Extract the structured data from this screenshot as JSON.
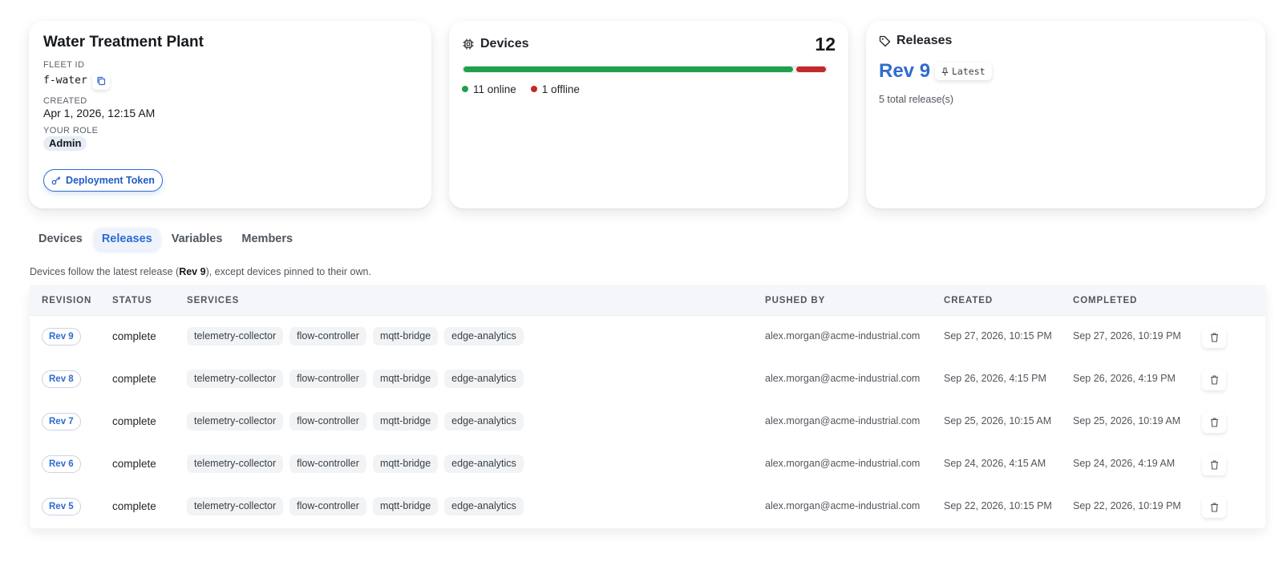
{
  "fleet": {
    "title": "Water Treatment Plant",
    "fleet_id_label": "FLEET ID",
    "fleet_id": "f-water",
    "created_label": "CREATED",
    "created": "Apr 1, 2026, 12:15 AM",
    "role_label": "YOUR ROLE",
    "role": "Admin",
    "token_button": "Deployment Token"
  },
  "devices": {
    "title": "Devices",
    "count": "12",
    "online": 11,
    "offline": 1,
    "online_label": "11 online",
    "offline_label": "1 offline",
    "online_color": "#1fa04a",
    "offline_color": "#c42828"
  },
  "releases": {
    "title": "Releases",
    "current": "Rev 9",
    "latest_label": "Latest",
    "total": "5 total release(s)"
  },
  "tabs": [
    "Devices",
    "Releases",
    "Variables",
    "Members"
  ],
  "active_tab": "Releases",
  "note": {
    "before": "Devices follow the latest release (",
    "rev": "Rev 9",
    "after": "), except devices pinned to their own."
  },
  "table": {
    "headers": [
      "REVISION",
      "STATUS",
      "SERVICES",
      "PUSHED BY",
      "CREATED",
      "COMPLETED"
    ],
    "rows": [
      {
        "rev": "Rev 9",
        "status": "complete",
        "services": [
          "telemetry-collector",
          "flow-controller",
          "mqtt-bridge",
          "edge-analytics"
        ],
        "pushed_by": "alex.morgan@acme-industrial.com",
        "created": "Sep 27, 2026, 10:15 PM",
        "completed": "Sep 27, 2026, 10:19 PM"
      },
      {
        "rev": "Rev 8",
        "status": "complete",
        "services": [
          "telemetry-collector",
          "flow-controller",
          "mqtt-bridge",
          "edge-analytics"
        ],
        "pushed_by": "alex.morgan@acme-industrial.com",
        "created": "Sep 26, 2026, 4:15 PM",
        "completed": "Sep 26, 2026, 4:19 PM"
      },
      {
        "rev": "Rev 7",
        "status": "complete",
        "services": [
          "telemetry-collector",
          "flow-controller",
          "mqtt-bridge",
          "edge-analytics"
        ],
        "pushed_by": "alex.morgan@acme-industrial.com",
        "created": "Sep 25, 2026, 10:15 AM",
        "completed": "Sep 25, 2026, 10:19 AM"
      },
      {
        "rev": "Rev 6",
        "status": "complete",
        "services": [
          "telemetry-collector",
          "flow-controller",
          "mqtt-bridge",
          "edge-analytics"
        ],
        "pushed_by": "alex.morgan@acme-industrial.com",
        "created": "Sep 24, 2026, 4:15 AM",
        "completed": "Sep 24, 2026, 4:19 AM"
      },
      {
        "rev": "Rev 5",
        "status": "complete",
        "services": [
          "telemetry-collector",
          "flow-controller",
          "mqtt-bridge",
          "edge-analytics"
        ],
        "pushed_by": "alex.morgan@acme-industrial.com",
        "created": "Sep 22, 2026, 10:15 PM",
        "completed": "Sep 22, 2026, 10:19 PM"
      }
    ]
  },
  "icons": {
    "copy": "copy-icon",
    "key": "key-icon",
    "chip": "chip-icon",
    "tag": "tag-icon",
    "pin": "pin-icon",
    "trash": "trash-icon"
  }
}
